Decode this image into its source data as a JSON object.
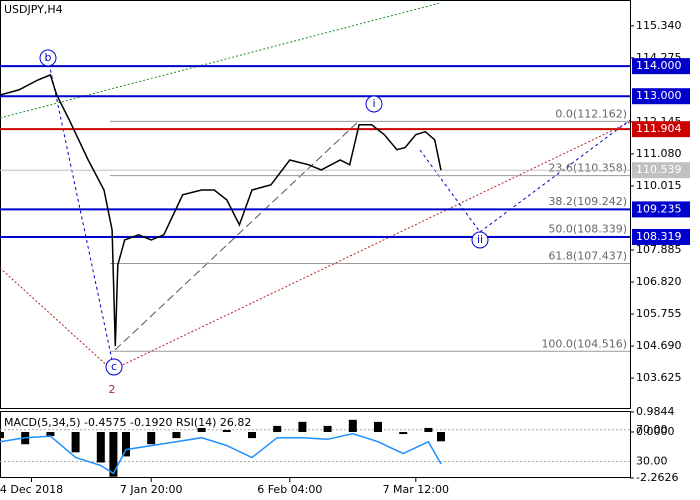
{
  "chart_data": [
    {
      "type": "line",
      "title": "USDJPY,H4",
      "x": [
        0,
        3,
        6,
        8,
        9,
        11,
        14,
        16.5,
        17.8,
        18.3,
        18.7,
        19.8,
        22,
        24,
        26,
        29,
        32,
        34,
        36,
        38,
        40,
        43,
        46,
        49,
        51,
        54,
        55.5,
        57,
        59,
        61,
        63,
        64.3,
        66,
        67.5,
        69,
        70
      ],
      "values": [
        113.04,
        113.21,
        113.54,
        113.71,
        113.04,
        112.21,
        110.88,
        109.88,
        108.55,
        104.69,
        107.39,
        108.22,
        108.39,
        108.22,
        108.39,
        109.72,
        109.88,
        109.88,
        109.55,
        108.72,
        109.88,
        110.05,
        110.88,
        110.72,
        110.55,
        110.88,
        110.72,
        112.05,
        112.05,
        111.72,
        111.22,
        111.29,
        111.72,
        111.82,
        111.55,
        110.539
      ],
      "color": "#000000",
      "xlim": [
        0,
        100
      ],
      "xticks": [
        {
          "value": 5,
          "label": "4 Dec 2018"
        },
        {
          "value": 24,
          "label": "7 Jan 20:00"
        },
        {
          "value": 46,
          "label": "6 Feb 04:00"
        },
        {
          "value": 66,
          "label": "7 Mar 12:00"
        }
      ],
      "ylim": [
        102.63,
        116.2
      ],
      "yticks": [
        {
          "value": 115.34,
          "label": "115.340"
        },
        114.275,
        112.145,
        {
          "value": 111.08,
          "label": "111.080"
        },
        110.015,
        107.885,
        {
          "value": 106.82,
          "label": "106.820"
        },
        105.755,
        {
          "value": 104.69,
          "label": "104.690"
        },
        103.625
      ],
      "levels": [
        {
          "value": 114,
          "label": "114.000",
          "color": "#0000cd"
        },
        {
          "value": 113,
          "label": "113.000",
          "color": "#0000cd"
        },
        {
          "value": 111.904,
          "label": "111.904",
          "color": "#cc0000"
        },
        {
          "value": 109.235,
          "label": "109.235",
          "color": "#0000cd"
        },
        {
          "value": 108.319,
          "label": "108.319",
          "color": "#0000cd"
        }
      ],
      "price_tag": {
        "value": 110.539,
        "label": "110.539",
        "color": "#c0c0c0"
      },
      "fib_levels": [
        {
          "value": 112.162,
          "label": "0.0(112.162)"
        },
        {
          "value": 110.358,
          "label": "23.6(110.358)"
        },
        {
          "value": 109.242,
          "label": "38.2(109.242)"
        },
        {
          "value": 108.339,
          "label": "50.0(108.339)"
        },
        {
          "value": 107.437,
          "label": "61.8(107.437)"
        },
        {
          "value": 104.516,
          "label": "100.0(104.516)"
        }
      ],
      "annotations": [
        "b",
        "i",
        "c",
        "ii",
        "2"
      ]
    },
    {
      "type": "combo",
      "title": "MACD(5,34,5) -0.4575 -0.1920 RSI(14) 26.82",
      "x": [
        0,
        4,
        8,
        12,
        16,
        18,
        20,
        24,
        28,
        32,
        36,
        40,
        44,
        48,
        52,
        56,
        60,
        64,
        68,
        70
      ],
      "series": [
        {
          "color": "#000000",
          "values": [
            -0.3,
            -0.6,
            -0.2,
            -1.0,
            -1.5,
            -2.2,
            -1.2,
            -0.6,
            -0.3,
            0.2,
            0.1,
            -0.3,
            0.3,
            0.5,
            0.3,
            0.6,
            0.5,
            -0.1,
            0.2,
            -0.4575
          ]
        },
        {
          "color": "#1e90ff",
          "axis": "y2",
          "values": [
            55,
            60,
            62,
            35,
            25,
            15,
            45,
            50,
            55,
            60,
            50,
            35,
            60,
            60,
            58,
            65,
            55,
            40,
            55,
            26.82
          ]
        }
      ],
      "ylim": [
        -2.2626,
        0.9844
      ],
      "yticks": [
        0.9844,
        {
          "value": 0,
          "label": "0.0000"
        },
        -2.2626
      ],
      "y2lim": [
        9.2,
        92.4
      ],
      "y2ticks": [
        {
          "value": 70,
          "label": "70.00"
        },
        {
          "value": 30,
          "label": "30.00"
        }
      ]
    }
  ]
}
